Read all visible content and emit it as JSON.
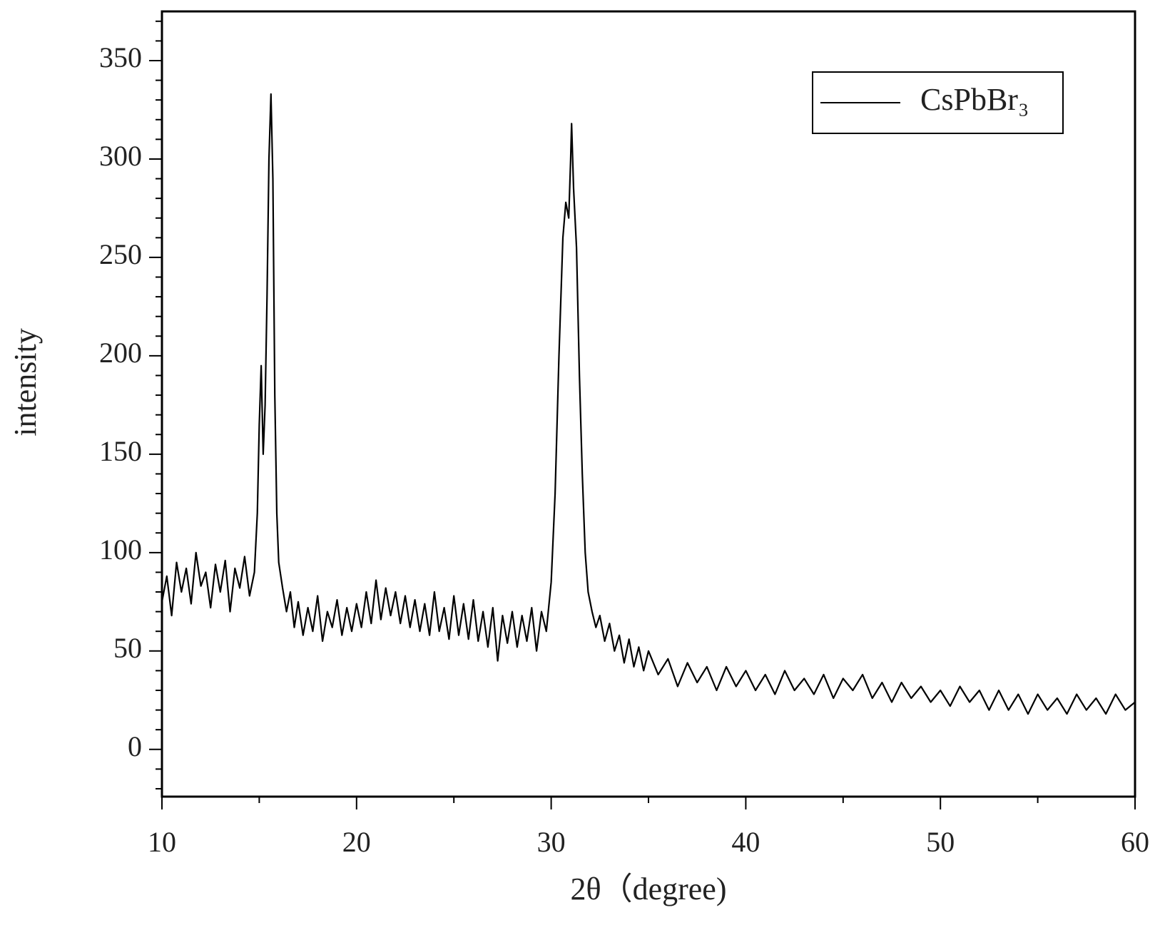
{
  "chart_data": {
    "type": "line",
    "xlabel": "2θ（degree)",
    "ylabel": "intensity",
    "xlim": [
      10,
      60
    ],
    "xticks": [
      10,
      20,
      30,
      40,
      50,
      60
    ],
    "xminorticks": [
      15,
      25,
      35,
      45,
      55
    ],
    "ylim": [
      -24,
      375
    ],
    "yticks": [
      0,
      50,
      100,
      150,
      200,
      250,
      300,
      350
    ],
    "yminorticks": [
      -20,
      -10,
      10,
      20,
      30,
      40,
      60,
      70,
      80,
      90,
      110,
      120,
      130,
      140,
      160,
      170,
      180,
      190,
      210,
      220,
      230,
      240,
      260,
      270,
      280,
      290,
      310,
      320,
      330,
      340,
      360,
      370
    ],
    "legend": "upper right",
    "series": [
      {
        "name": "CsPbBr₃",
        "color": "#000000",
        "x": [
          10,
          10.25,
          10.5,
          10.75,
          11,
          11.25,
          11.5,
          11.75,
          12,
          12.25,
          12.5,
          12.75,
          13,
          13.25,
          13.5,
          13.75,
          14,
          14.25,
          14.5,
          14.75,
          14.9,
          15.0,
          15.1,
          15.2,
          15.3,
          15.4,
          15.5,
          15.6,
          15.7,
          15.8,
          15.9,
          16.0,
          16.2,
          16.4,
          16.6,
          16.8,
          17,
          17.25,
          17.5,
          17.75,
          18,
          18.25,
          18.5,
          18.75,
          19,
          19.25,
          19.5,
          19.75,
          20,
          20.25,
          20.5,
          20.75,
          21,
          21.25,
          21.5,
          21.75,
          22,
          22.25,
          22.5,
          22.75,
          23,
          23.25,
          23.5,
          23.75,
          24,
          24.25,
          24.5,
          24.75,
          25,
          25.25,
          25.5,
          25.75,
          26,
          26.25,
          26.5,
          26.75,
          27,
          27.25,
          27.5,
          27.75,
          28,
          28.25,
          28.5,
          28.75,
          29,
          29.25,
          29.5,
          29.75,
          30.0,
          30.2,
          30.4,
          30.6,
          30.75,
          30.9,
          31.0,
          31.05,
          31.15,
          31.3,
          31.45,
          31.6,
          31.75,
          31.9,
          32.1,
          32.3,
          32.5,
          32.75,
          33,
          33.25,
          33.5,
          33.75,
          34,
          34.25,
          34.5,
          34.75,
          35,
          35.5,
          36,
          36.5,
          37,
          37.5,
          38,
          38.5,
          39,
          39.5,
          40,
          40.5,
          41,
          41.5,
          42,
          42.5,
          43,
          43.5,
          44,
          44.5,
          45,
          45.5,
          46,
          46.5,
          47,
          47.5,
          48,
          48.5,
          49,
          49.5,
          50,
          50.5,
          51,
          51.5,
          52,
          52.5,
          53,
          53.5,
          54,
          54.5,
          55,
          55.5,
          56,
          56.5,
          57,
          57.5,
          58,
          58.5,
          59,
          59.5,
          60
        ],
        "values": [
          75,
          88,
          68,
          95,
          80,
          92,
          74,
          100,
          83,
          90,
          72,
          94,
          80,
          96,
          70,
          92,
          82,
          98,
          78,
          90,
          120,
          165,
          195,
          150,
          175,
          230,
          300,
          333,
          290,
          180,
          120,
          95,
          82,
          70,
          80,
          62,
          75,
          58,
          72,
          60,
          78,
          55,
          70,
          62,
          76,
          58,
          72,
          60,
          74,
          62,
          80,
          64,
          86,
          66,
          82,
          68,
          80,
          64,
          78,
          62,
          76,
          60,
          74,
          58,
          80,
          60,
          72,
          56,
          78,
          58,
          74,
          56,
          76,
          55,
          70,
          52,
          72,
          45,
          68,
          54,
          70,
          52,
          68,
          55,
          72,
          50,
          70,
          60,
          85,
          130,
          200,
          260,
          278,
          270,
          300,
          318,
          285,
          255,
          190,
          140,
          100,
          80,
          70,
          62,
          68,
          55,
          64,
          50,
          58,
          44,
          56,
          42,
          52,
          40,
          50,
          38,
          46,
          32,
          44,
          34,
          42,
          30,
          42,
          32,
          40,
          30,
          38,
          28,
          40,
          30,
          36,
          28,
          38,
          26,
          36,
          30,
          38,
          26,
          34,
          24,
          34,
          26,
          32,
          24,
          30,
          22,
          32,
          24,
          30,
          20,
          30,
          20,
          28,
          18,
          28,
          20,
          26,
          18,
          28,
          20,
          26,
          18,
          28,
          20,
          24
        ]
      }
    ]
  }
}
